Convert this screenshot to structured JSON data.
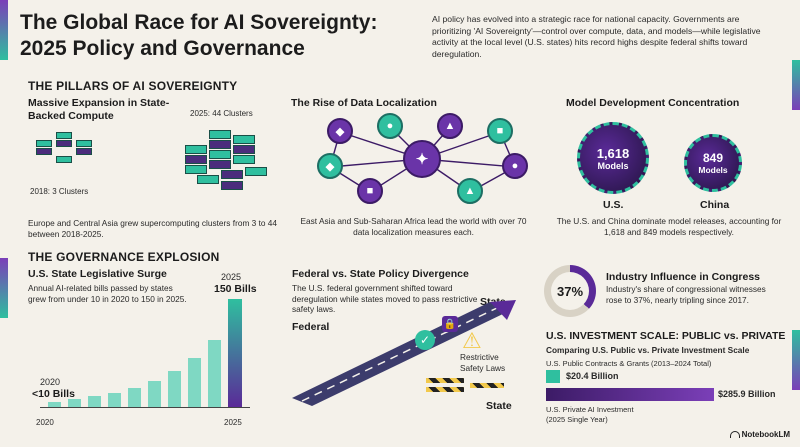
{
  "header": {
    "title": "The Global Race for AI Sovereignty: 2025 Policy and Governance",
    "intro": "AI policy has evolved into a strategic race for national capacity. Governments are prioritizing 'AI Sovereignty'—control over compute, data, and models—while legislative activity at the local level (U.S. states) hits record highs despite federal shifts toward deregulation."
  },
  "pillars": {
    "heading": "THE PILLARS OF AI SOVEREIGNTY",
    "compute": {
      "title": "Massive Expansion in State-Backed Compute",
      "label_2025": "2025: 44 Clusters",
      "label_2018": "2018: 3 Clusters",
      "desc": "Europe and Central Asia grew supercomputing clusters from 3 to 44 between 2018-2025."
    },
    "data": {
      "title": "The Rise of Data Localization",
      "desc": "East Asia and Sub-Saharan Africa lead the world with over 70 data localization measures each."
    },
    "models": {
      "title": "Model Development Concentration",
      "us_value": "1,618",
      "us_unit": "Models",
      "us_label": "U.S.",
      "china_value": "849",
      "china_unit": "Models",
      "china_label": "China",
      "desc": "The U.S. and China dominate model releases, accounting for 1,618 and 849 models respectively."
    }
  },
  "governance": {
    "heading": "THE GOVERNANCE EXPLOSION",
    "state": {
      "title": "U.S. State Legislative Surge",
      "desc": "Annual AI-related bills passed by states grew from under 10 in 2020 to 150 in 2025.",
      "label_2025_year": "2025",
      "label_2025_value": "150 Bills",
      "label_2020_year": "2020",
      "label_2020_value": "<10 Bills",
      "axis_start": "2020",
      "axis_end": "2025",
      "bar_levels": [
        0.05,
        0.07,
        0.1,
        0.13,
        0.18,
        0.24,
        0.33,
        0.45,
        0.62,
        1.0
      ]
    },
    "divergence": {
      "title": "Federal vs. State Policy Divergence",
      "desc": "The U.S. federal government shifted toward deregulation while states moved to pass restrictive safety laws.",
      "label_federal": "Federal",
      "label_state_top": "State",
      "label_state_bottom": "State",
      "label_restrictive": "Restrictive Safety Laws"
    },
    "industry": {
      "percent": "37%",
      "title": "Industry Influence in Congress",
      "desc": "Industry's share of congressional witnesses rose to 37%, nearly tripling since 2017."
    },
    "investment": {
      "heading": "U.S. INVESTMENT SCALE: PUBLIC vs. PRIVATE",
      "subheading": "Comparing U.S. Public vs. Private Investment Scale",
      "public_label": "U.S. Public Contracts & Grants (2013–2024 Total)",
      "public_value": "$20.4 Billion",
      "private_value": "$285.9 Billion",
      "private_label": "U.S. Private AI Investment",
      "private_sub": "(2025 Single Year)"
    }
  },
  "footer": {
    "brand": "NotebookLM"
  },
  "colors": {
    "teal": "#2fbf9f",
    "purple": "#5a2a98",
    "cream": "#f4f1ea"
  }
}
